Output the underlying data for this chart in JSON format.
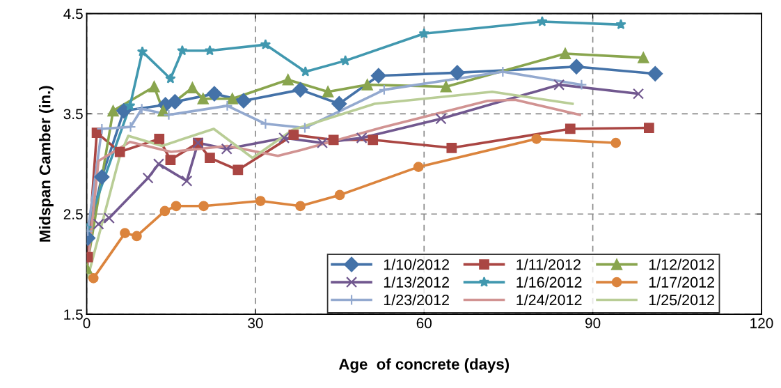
{
  "chart_data": {
    "type": "line",
    "xlabel": "Age  of concrete (days)",
    "ylabel": "Midspan Camber (in.)",
    "xlim": [
      0,
      120
    ],
    "xticks": [
      0,
      30,
      60,
      90,
      120
    ],
    "ylim": [
      1.5,
      4.5
    ],
    "yticks": [
      1.5,
      2.5,
      3.5,
      4.5
    ],
    "grid": true,
    "legend": "bottom right",
    "line_style": "solid",
    "series": [
      {
        "name": "1/10/2012",
        "color": "#4472a8",
        "marker": "diamond",
        "x": [
          0.2,
          2.7,
          6.6,
          14,
          15.7,
          22.7,
          27.9,
          38,
          44.9,
          51.9,
          65.9,
          87.1,
          101.1
        ],
        "values": [
          2.26,
          2.87,
          3.53,
          3.59,
          3.62,
          3.7,
          3.63,
          3.74,
          3.6,
          3.88,
          3.91,
          3.97,
          3.9
        ]
      },
      {
        "name": "1/11/2012",
        "color": "#aa4643",
        "marker": "square",
        "x": [
          0.2,
          1.8,
          5.9,
          12.9,
          14.9,
          19.8,
          21.9,
          26.9,
          36.8,
          43.9,
          50.9,
          64.9,
          86,
          100
        ],
        "values": [
          2.07,
          3.31,
          3.12,
          3.25,
          3.04,
          3.21,
          3.06,
          2.94,
          3.29,
          3.24,
          3.24,
          3.16,
          3.35,
          3.36
        ]
      },
      {
        "name": "1/12/2012",
        "color": "#89a54e",
        "marker": "triangle",
        "x": [
          0,
          4.7,
          12,
          13.6,
          18.8,
          20.7,
          25.9,
          35.8,
          42.9,
          49.9,
          63.9,
          85.1,
          99
        ],
        "values": [
          1.96,
          3.53,
          3.77,
          3.53,
          3.76,
          3.65,
          3.65,
          3.84,
          3.72,
          3.79,
          3.77,
          4.1,
          4.06
        ]
      },
      {
        "name": "1/13/2012",
        "color": "#71588f",
        "marker": "cross",
        "x": [
          2.1,
          4,
          10.9,
          12.8,
          17.8,
          19.8,
          24.9,
          35.1,
          41.9,
          48.9,
          63,
          84,
          98.1
        ],
        "values": [
          2.4,
          2.46,
          2.86,
          3.0,
          2.83,
          3.21,
          3.15,
          3.26,
          3.21,
          3.26,
          3.45,
          3.79,
          3.7
        ]
      },
      {
        "name": "1/16/2012",
        "color": "#4198af",
        "marker": "star",
        "x": [
          0,
          7.7,
          9.9,
          14.9,
          17,
          21.9,
          31.8,
          38.9,
          46,
          60,
          81,
          95
        ],
        "values": [
          2.36,
          3.58,
          4.12,
          3.85,
          4.13,
          4.13,
          4.19,
          3.92,
          4.03,
          4.3,
          4.42,
          4.39
        ]
      },
      {
        "name": "1/17/2012",
        "color": "#db843d",
        "marker": "circle",
        "x": [
          1.2,
          6.8,
          8.9,
          13.9,
          15.9,
          20.8,
          30.9,
          38,
          45,
          59,
          80,
          94.1
        ],
        "values": [
          1.86,
          2.31,
          2.28,
          2.53,
          2.58,
          2.58,
          2.63,
          2.58,
          2.69,
          2.97,
          3.25,
          3.21
        ]
      },
      {
        "name": "1/23/2012",
        "color": "#93a9cf",
        "marker": "plus",
        "x": [
          0.2,
          2.7,
          7.8,
          9.8,
          14.6,
          25,
          31.8,
          38.8,
          52.9,
          74,
          88
        ],
        "values": [
          2.33,
          3.35,
          3.37,
          3.55,
          3.49,
          3.58,
          3.4,
          3.36,
          3.74,
          3.92,
          3.79
        ]
      },
      {
        "name": "1/24/2012",
        "color": "#d19392",
        "marker": "none",
        "x": [
          0.2,
          2.1,
          7.7,
          15,
          25,
          34,
          38.2,
          52.3,
          71.3,
          76.2,
          87.7
        ],
        "values": [
          2.0,
          3.03,
          3.22,
          3.12,
          3.18,
          3.08,
          3.14,
          3.36,
          3.63,
          3.64,
          3.49
        ]
      },
      {
        "name": "1/25/2012",
        "color": "#b9cd96",
        "marker": "none",
        "x": [
          0.2,
          5.9,
          7.4,
          13.4,
          22.6,
          29.5,
          36.6,
          51.2,
          72.1,
          86.4
        ],
        "values": [
          1.87,
          3.08,
          3.28,
          3.18,
          3.35,
          3.06,
          3.34,
          3.6,
          3.72,
          3.6
        ]
      }
    ]
  }
}
